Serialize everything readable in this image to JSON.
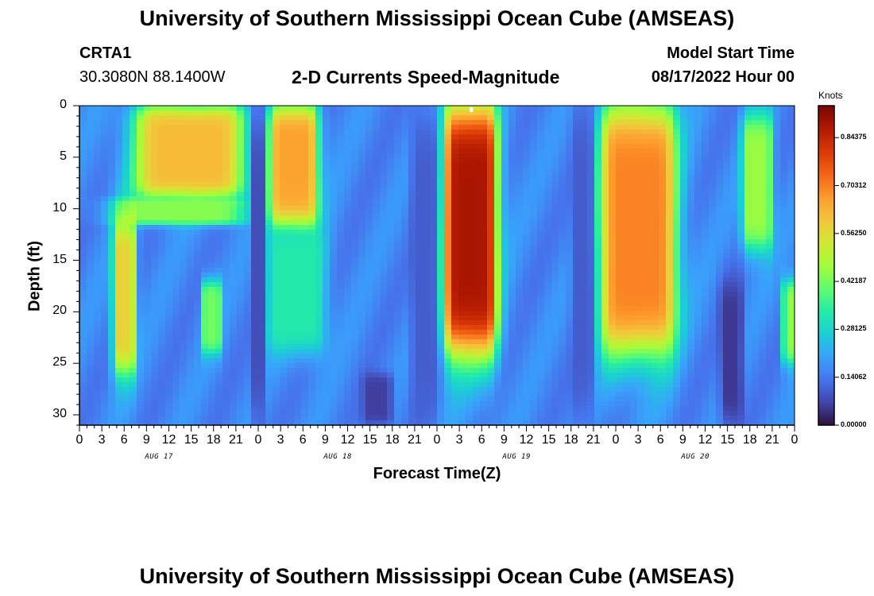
{
  "page": {
    "title": "University of Southern Mississippi Ocean Cube (AMSEAS)",
    "title_repeat": "University of Southern Mississippi Ocean Cube (AMSEAS)"
  },
  "header": {
    "station": "CRTA1",
    "coords": "30.3080N  88.1400W",
    "plot_title": "2-D Currents Speed-Magnitude",
    "model_start_label": "Model Start Time",
    "model_start_value": "08/17/2022 Hour 00"
  },
  "colorbar": {
    "unit_label": "Knots",
    "ticks": [
      "0.84375",
      "0.70312",
      "0.56250",
      "0.42187",
      "0.28125",
      "0.14062",
      "0.00000"
    ],
    "tick_values": [
      0.84375,
      0.703125,
      0.5625,
      0.421875,
      0.28125,
      0.140625,
      0.0
    ],
    "range": [
      0.0,
      0.9375
    ],
    "colors": [
      "#30123b",
      "#4145ab",
      "#4675ed",
      "#39a2fc",
      "#1bcfd4",
      "#24eca6",
      "#61fc6c",
      "#a4fc3b",
      "#d1e834",
      "#f3c63a",
      "#fe9b2d",
      "#f36315",
      "#d93806",
      "#b11901",
      "#7a0403"
    ]
  },
  "chart_data": {
    "type": "heatmap",
    "title": "2-D Currents Speed-Magnitude",
    "xlabel": "Forecast Time(Z)",
    "ylabel": "Depth (ft)",
    "x_ticks": [
      "0",
      "3",
      "6",
      "9",
      "12",
      "15",
      "18",
      "21",
      "0",
      "3",
      "6",
      "9",
      "12",
      "15",
      "18",
      "21",
      "0",
      "3",
      "6",
      "9",
      "12",
      "15",
      "18",
      "21",
      "0",
      "3",
      "6",
      "9",
      "12",
      "15",
      "18",
      "21",
      "0"
    ],
    "x_hours": [
      0,
      96
    ],
    "day_labels": [
      "AUG 17",
      "AUG 18",
      "AUG 19",
      "AUG 20"
    ],
    "y_ticks": [
      "0",
      "5",
      "10",
      "15",
      "20",
      "25",
      "30"
    ],
    "y_values": [
      0,
      5,
      10,
      15,
      20,
      25,
      30
    ],
    "ylim": [
      0,
      31
    ],
    "units": "Knots",
    "vrange": [
      0.0,
      0.9375
    ],
    "background": 0.16,
    "features": [
      {
        "name": "day1-upper-jet",
        "t": [
          7.5,
          22
        ],
        "d": [
          0,
          9
        ],
        "speed": 0.62
      },
      {
        "name": "day1-shear-band",
        "t": [
          5,
          22
        ],
        "d": [
          9,
          11.5
        ],
        "speed": 0.44
      },
      {
        "name": "day1-lower-core",
        "t": [
          4.5,
          7.5
        ],
        "d": [
          11,
          26
        ],
        "speed": 0.58
      },
      {
        "name": "day1-mid-patch",
        "t": [
          16.5,
          19
        ],
        "d": [
          17,
          24
        ],
        "speed": 0.42
      },
      {
        "name": "day2-upper-core",
        "t": [
          25.5,
          32
        ],
        "d": [
          0,
          12
        ],
        "speed": 0.66
      },
      {
        "name": "day2-mid-plume",
        "t": [
          25,
          33
        ],
        "d": [
          12,
          24
        ],
        "speed": 0.33
      },
      {
        "name": "day3-main-jet",
        "t": [
          49,
          56
        ],
        "d": [
          0,
          24
        ],
        "speed": 0.88
      },
      {
        "name": "day4-main-jet",
        "t": [
          70,
          80
        ],
        "d": [
          0,
          24
        ],
        "speed": 0.7
      },
      {
        "name": "day4-second-jet",
        "t": [
          89,
          93
        ],
        "d": [
          1,
          14
        ],
        "speed": 0.46
      },
      {
        "name": "day4-deep-edge",
        "t": [
          94.5,
          96
        ],
        "d": [
          17,
          25
        ],
        "speed": 0.45
      }
    ],
    "lows": [
      {
        "name": "slack-1",
        "t": [
          23,
          25
        ],
        "d": [
          0,
          31
        ],
        "speed": 0.08
      },
      {
        "name": "slack-2",
        "t": [
          44.5,
          48
        ],
        "d": [
          0,
          31
        ],
        "speed": 0.1
      },
      {
        "name": "slack-3",
        "t": [
          66,
          69
        ],
        "d": [
          0,
          31
        ],
        "speed": 0.1
      },
      {
        "name": "slack-4",
        "t": [
          86,
          89
        ],
        "d": [
          17,
          31
        ],
        "speed": 0.05
      },
      {
        "name": "deep-min-1",
        "t": [
          38,
          42
        ],
        "d": [
          26,
          31
        ],
        "speed": 0.06
      }
    ]
  }
}
